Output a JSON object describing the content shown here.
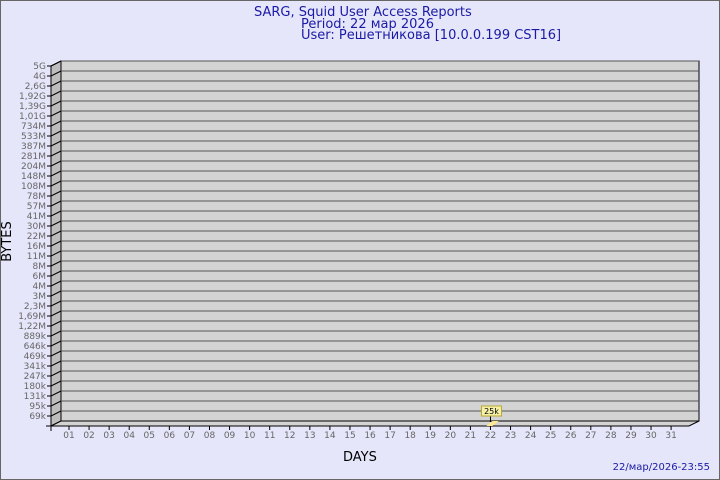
{
  "header": {
    "title": "SARG, Squid User Access Reports",
    "period": "Period: 22 мар 2026",
    "user": "User: Решетникова [10.0.0.199 CST16]"
  },
  "footer": {
    "timestamp": "22/мар/2026-23:55"
  },
  "colors": {
    "background": "#e6e6fa",
    "plot": "#d3d3d3",
    "bar": "#ffef8f",
    "title": "#1a1aa6"
  },
  "chart_data": {
    "type": "bar",
    "xlabel": "DAYS",
    "ylabel": "BYTES",
    "y_scale": "log",
    "y_ticks": [
      "5G",
      "4G",
      "2,6G",
      "1,92G",
      "1,39G",
      "1,01G",
      "734M",
      "533M",
      "387M",
      "281M",
      "204M",
      "148M",
      "108M",
      "78M",
      "57M",
      "41M",
      "30M",
      "22M",
      "16M",
      "11M",
      "8M",
      "6M",
      "4M",
      "3M",
      "2,3M",
      "1,69M",
      "1,22M",
      "889k",
      "646k",
      "469k",
      "341k",
      "247k",
      "180k",
      "131k",
      "95k",
      "69k"
    ],
    "categories": [
      "01",
      "02",
      "03",
      "04",
      "05",
      "06",
      "07",
      "08",
      "09",
      "10",
      "11",
      "12",
      "13",
      "14",
      "15",
      "16",
      "17",
      "18",
      "19",
      "20",
      "21",
      "22",
      "23",
      "24",
      "25",
      "26",
      "27",
      "28",
      "29",
      "30",
      "31"
    ],
    "series": [
      {
        "points": [
          {
            "day": "22",
            "value": 25000,
            "label": "25k"
          }
        ]
      }
    ],
    "grid": true
  }
}
